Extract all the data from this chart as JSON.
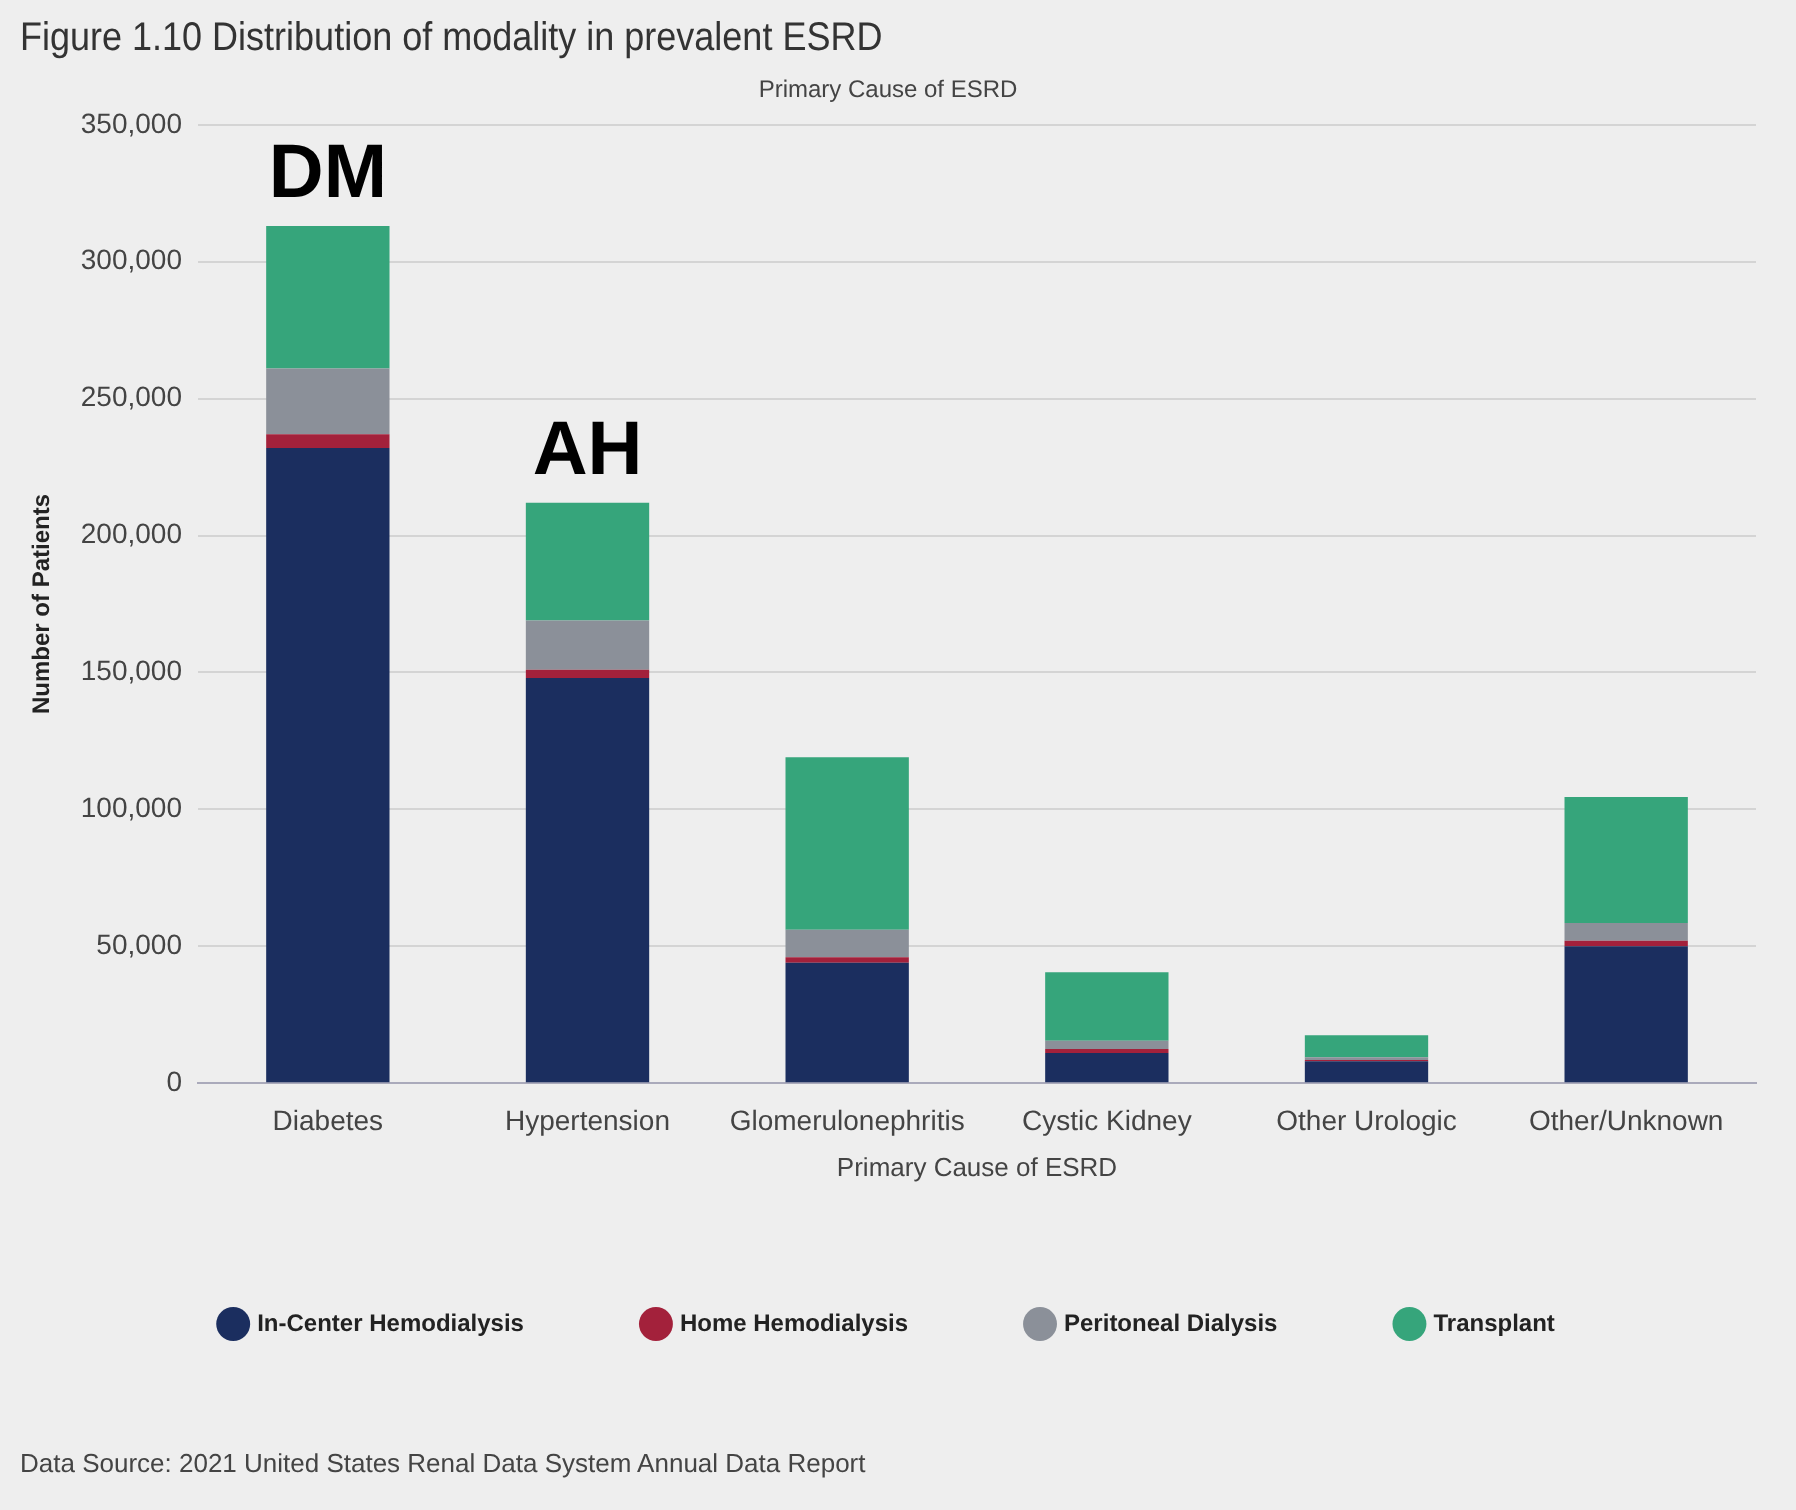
{
  "chart_data": {
    "type": "bar",
    "title": "Figure 1.10 Distribution of modality in prevalent ESRD",
    "subtitle": "Primary Cause of ESRD",
    "xlabel": "Primary Cause of ESRD",
    "ylabel": "Number of Patients",
    "categories": [
      "Diabetes",
      "Hypertension",
      "Glomerulonephritis",
      "Cystic Kidney",
      "Other Urologic",
      "Other/Unknown"
    ],
    "stacked": true,
    "series": [
      {
        "name": "In-Center Hemodialysis",
        "color": "#1b2e5f",
        "values": [
          232000,
          148000,
          44000,
          11000,
          8000,
          50000
        ]
      },
      {
        "name": "Home Hemodialysis",
        "color": "#a3213b",
        "values": [
          5000,
          3000,
          2000,
          1500,
          500,
          2000
        ]
      },
      {
        "name": "Peritoneal Dialysis",
        "color": "#8b9099",
        "values": [
          24000,
          18000,
          10000,
          3000,
          1000,
          6500
        ]
      },
      {
        "name": "Transplant",
        "color": "#36a57b",
        "values": [
          52000,
          43000,
          63000,
          25000,
          8000,
          46000
        ]
      }
    ],
    "ylim": [
      0,
      350000
    ],
    "yticks": [
      {
        "value": 0,
        "label": "0"
      },
      {
        "value": 50000,
        "label": "50,000"
      },
      {
        "value": 100000,
        "label": "100,000"
      },
      {
        "value": 150000,
        "label": "150,000"
      },
      {
        "value": 200000,
        "label": "200,000"
      },
      {
        "value": 250000,
        "label": "250,000"
      },
      {
        "value": 300000,
        "label": "300,000"
      },
      {
        "value": 350000,
        "label": "350,000"
      }
    ],
    "grid": "y",
    "legend": "bottom",
    "annotations": [
      {
        "text": "DM",
        "x": "Diabetes",
        "y": 313000
      },
      {
        "text": "AH",
        "x": "Hypertension",
        "y": 212000
      },
      "Data Source: 2021 United States Renal Data System Annual Data Report"
    ]
  }
}
